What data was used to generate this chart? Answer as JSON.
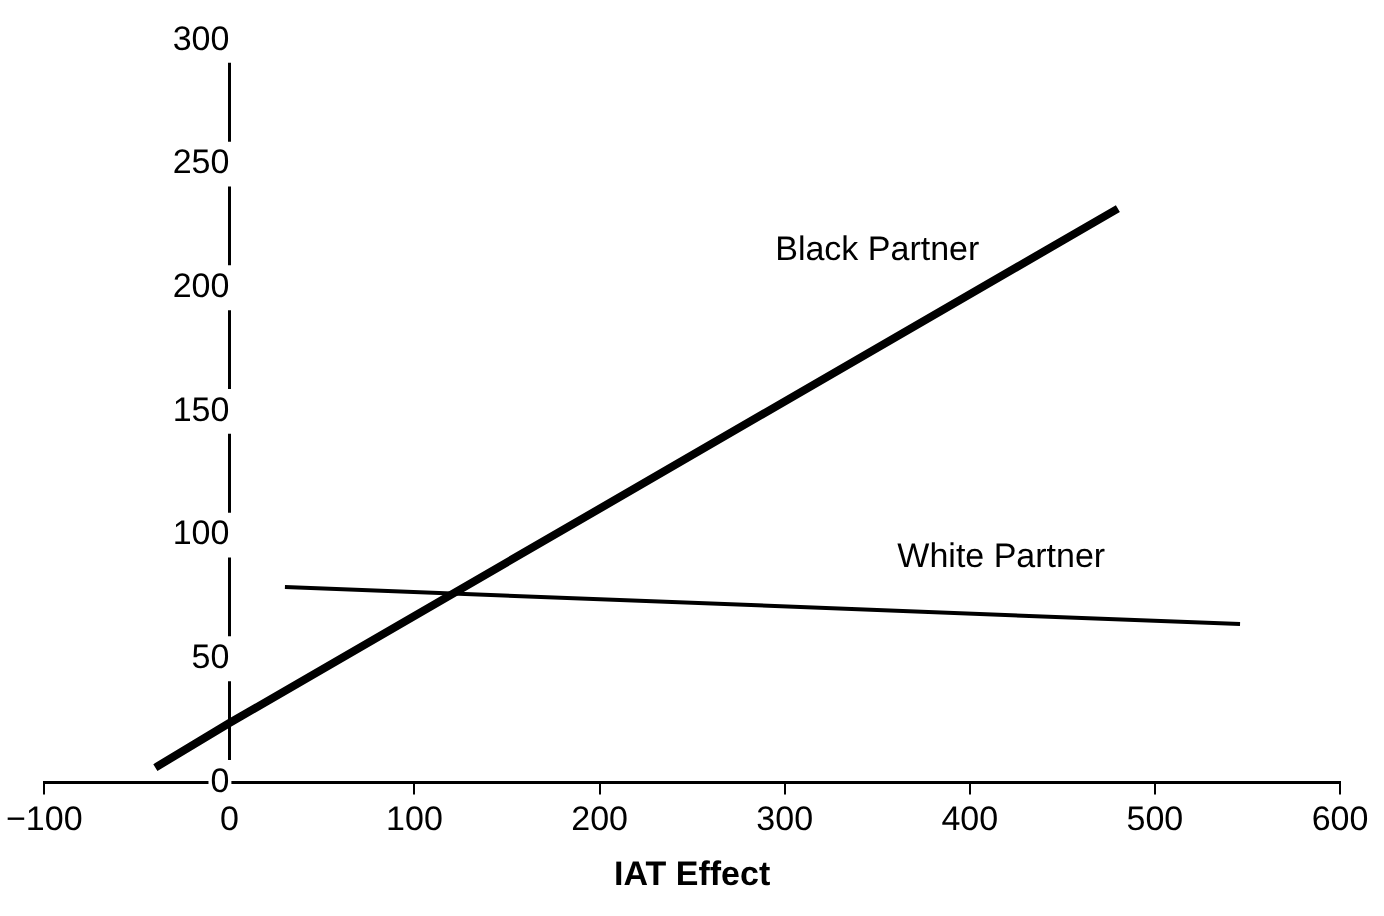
{
  "chart_data": {
    "type": "line",
    "xlabel": "IAT Effect",
    "xlim": [
      -100,
      600
    ],
    "xticks": [
      -100,
      0,
      100,
      200,
      300,
      400,
      500,
      600
    ],
    "ylim": [
      0,
      300
    ],
    "yticks": [
      0,
      50,
      100,
      150,
      200,
      250,
      300
    ],
    "grid": false,
    "legend": false,
    "marker": "none",
    "line_style": "solid",
    "series": [
      {
        "name": "Black Partner",
        "color": "#000000",
        "x": [
          -40,
          0,
          480
        ],
        "values": [
          6,
          24,
          232
        ]
      },
      {
        "name": "White Partner",
        "color": "#000000",
        "x": [
          30,
          546
        ],
        "values": [
          79,
          64
        ]
      }
    ]
  }
}
